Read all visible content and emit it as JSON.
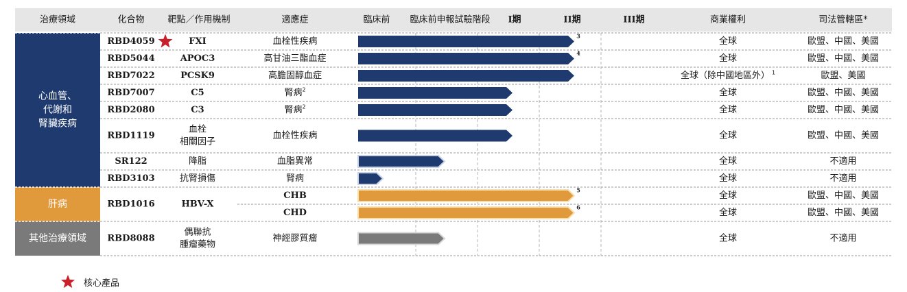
{
  "header": {
    "area": "治療領域",
    "compound": "化合物",
    "target": "靶點／作用機制",
    "indication": "適應症",
    "preclinical": "臨床前",
    "ind": "臨床前申報試驗階段",
    "phase1": "I期",
    "phase2": "II期",
    "phase3": "III期",
    "rights": "商業權利",
    "jurisdiction": "司法管轄區*"
  },
  "areas": [
    {
      "label_lines": [
        "心血管、",
        "代謝和",
        "腎臟疾病"
      ],
      "color": "#1e3a6e",
      "rows": [
        0,
        7
      ]
    },
    {
      "label_lines": [
        "肝病"
      ],
      "color": "#e19a3b",
      "rows": [
        8,
        9
      ]
    },
    {
      "label_lines": [
        "其他治療領域"
      ],
      "color": "#7a7a7a",
      "rows": [
        10,
        10
      ]
    }
  ],
  "compounds": [
    {
      "name": "RBD4059",
      "rows": [
        0,
        0
      ],
      "star": true
    },
    {
      "name": "RBD5044",
      "rows": [
        1,
        1
      ]
    },
    {
      "name": "RBD7022",
      "rows": [
        2,
        2
      ]
    },
    {
      "name": "RBD7007",
      "rows": [
        3,
        3
      ]
    },
    {
      "name": "RBD2080",
      "rows": [
        4,
        4
      ]
    },
    {
      "name": "RBD1119",
      "rows": [
        5,
        5
      ]
    },
    {
      "name": "SR122",
      "rows": [
        6,
        6
      ]
    },
    {
      "name": "RBD3103",
      "rows": [
        7,
        7
      ]
    },
    {
      "name": "RBD1016",
      "rows": [
        8,
        9
      ]
    },
    {
      "name": "RBD8088",
      "rows": [
        10,
        10
      ]
    }
  ],
  "targets": [
    {
      "lines": [
        "FXI"
      ],
      "rows": [
        0,
        0
      ],
      "latin": true
    },
    {
      "lines": [
        "APOC3"
      ],
      "rows": [
        1,
        1
      ],
      "latin": true
    },
    {
      "lines": [
        "PCSK9"
      ],
      "rows": [
        2,
        2
      ],
      "latin": true
    },
    {
      "lines": [
        "C5"
      ],
      "rows": [
        3,
        3
      ],
      "latin": true
    },
    {
      "lines": [
        "C3"
      ],
      "rows": [
        4,
        4
      ],
      "latin": true
    },
    {
      "lines": [
        "血栓",
        "相關因子"
      ],
      "rows": [
        5,
        5
      ]
    },
    {
      "lines": [
        "降脂"
      ],
      "rows": [
        6,
        6
      ]
    },
    {
      "lines": [
        "抗腎損傷"
      ],
      "rows": [
        7,
        7
      ]
    },
    {
      "lines": [
        "HBV-X"
      ],
      "rows": [
        8,
        9
      ],
      "latin": true
    },
    {
      "lines": [
        "偶聯抗",
        "腫瘤藥物"
      ],
      "rows": [
        10,
        10
      ]
    }
  ],
  "legend": {
    "core_product": "核心產品"
  },
  "colors": {
    "navy": "#1e3a6e",
    "orange": "#e19a3b",
    "gray": "#7a7a7a",
    "header_bg": "#e6e6e6",
    "star": "#c8202a"
  },
  "chart_data": {
    "type": "table",
    "stages": [
      "臨床前",
      "臨床前申報試驗階段",
      "I期",
      "II期",
      "III期"
    ],
    "rows": [
      {
        "indication": "血栓性疾病",
        "progress_stages": 3.5,
        "footnote": "3",
        "rights": "全球",
        "jurisdiction": "歐盟、中國、美國"
      },
      {
        "indication": "高甘油三酯血症",
        "progress_stages": 3.5,
        "footnote": "4",
        "rights": "全球",
        "jurisdiction": "歐盟、中國、美國"
      },
      {
        "indication": "高膽固醇血症",
        "progress_stages": 3.5,
        "rights": "全球（除中國地區外）",
        "rights_footnote": "1",
        "jurisdiction": "歐盟、美國"
      },
      {
        "indication": "腎病",
        "indication_footnote": "2",
        "progress_stages": 2.5,
        "rights": "全球",
        "jurisdiction": "歐盟、中國、美國"
      },
      {
        "indication": "腎病",
        "indication_footnote": "2",
        "progress_stages": 2.5,
        "rights": "全球",
        "jurisdiction": "歐盟、中國、美國"
      },
      {
        "indication": "血栓性疾病",
        "progress_stages": 2.5,
        "rights": "全球",
        "jurisdiction": "歐盟、中國、美國"
      },
      {
        "indication": "血脂異常",
        "progress_stages": 1.4,
        "rights": "全球",
        "jurisdiction": "不適用"
      },
      {
        "indication": "腎病",
        "progress_stages": 0.4,
        "rights": "全球",
        "jurisdiction": "不適用"
      },
      {
        "indication": "CHB",
        "progress_stages": 3.5,
        "footnote": "5",
        "rights": "全球",
        "jurisdiction": "歐盟、中國、美國"
      },
      {
        "indication": "CHD",
        "progress_stages": 3.5,
        "footnote": "6",
        "rights": "全球",
        "jurisdiction": "歐盟、中國、美國"
      },
      {
        "indication": "神經膠質瘤",
        "progress_stages": 1.4,
        "rights": "全球",
        "jurisdiction": "不適用"
      }
    ]
  }
}
